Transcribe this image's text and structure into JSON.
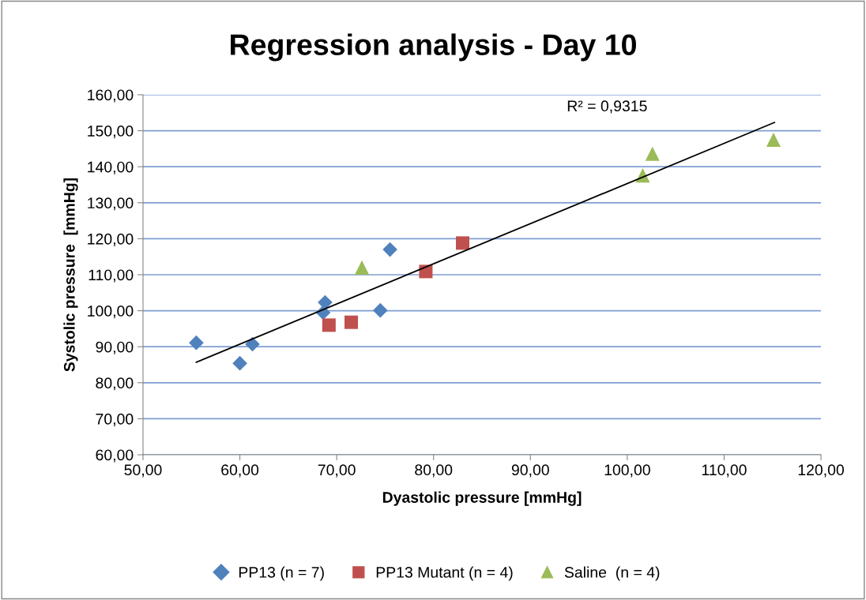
{
  "chart_data": {
    "type": "scatter",
    "title": "Regression analysis - Day 10",
    "xlabel": "Dyastolic pressure [mmHg]",
    "ylabel": "Systolic pressure  [mmHg]",
    "series": [
      {
        "name": "PP13 (n = 7)",
        "color": "#4f81bd",
        "marker": "diamond",
        "x": [
          55.5,
          60.0,
          61.3,
          68.6,
          68.8,
          74.5,
          75.5
        ],
        "values": [
          91.1,
          85.4,
          90.7,
          99.5,
          102.3,
          100.1,
          117.0
        ]
      },
      {
        "name": "PP13 Mutant (n = 4)",
        "color": "#c0504d",
        "marker": "square",
        "x": [
          69.2,
          71.5,
          79.2,
          83.0
        ],
        "values": [
          96.0,
          96.8,
          110.9,
          118.8
        ]
      },
      {
        "name": "Saline  (n = 4)",
        "color": "#9bbb59",
        "marker": "triangle",
        "x": [
          72.6,
          101.6,
          102.6,
          115.1
        ],
        "values": [
          112.0,
          137.6,
          143.6,
          147.5
        ]
      },
      {
        "type": "line",
        "color": "#000000",
        "marker": "none",
        "x": [
          55.5,
          115.2
        ],
        "values": [
          85.7,
          152.3
        ]
      }
    ],
    "annotations": [
      "R² = 0,9315"
    ],
    "xlim": [
      50,
      120
    ],
    "ylim": [
      60,
      160
    ],
    "xticks": [
      {
        "value": 50,
        "label": "50,00"
      },
      {
        "value": 60,
        "label": "60,00"
      },
      {
        "value": 70,
        "label": "70,00"
      },
      {
        "value": 80,
        "label": "80,00"
      },
      {
        "value": 90,
        "label": "90,00"
      },
      {
        "value": 100,
        "label": "100,00"
      },
      {
        "value": 110,
        "label": "110,00"
      },
      {
        "value": 120,
        "label": "120,00"
      }
    ],
    "yticks": [
      {
        "value": 60,
        "label": "60,00"
      },
      {
        "value": 70,
        "label": "70,00"
      },
      {
        "value": 80,
        "label": "80,00"
      },
      {
        "value": 90,
        "label": "90,00"
      },
      {
        "value": 100,
        "label": "100,00"
      },
      {
        "value": 110,
        "label": "110,00"
      },
      {
        "value": 120,
        "label": "120,00"
      },
      {
        "value": 130,
        "label": "130,00"
      },
      {
        "value": 140,
        "label": "140,00"
      },
      {
        "value": 150,
        "label": "150,00"
      },
      {
        "value": 160,
        "label": "160,00"
      }
    ],
    "grid": "y",
    "legend": "bottom"
  }
}
